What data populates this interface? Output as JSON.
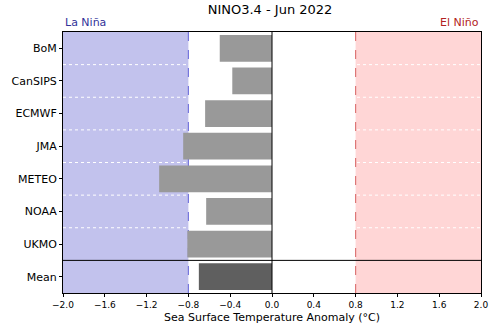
{
  "chart_data": {
    "type": "bar",
    "orientation": "horizontal",
    "title": "NINO3.4 - Jun 2022",
    "x_label": "Sea Surface Temperature Anomaly (°C)",
    "categories": [
      "BoM",
      "CanSIPS",
      "ECMWF",
      "JMA",
      "METEO",
      "NOAA",
      "UKMO",
      "Mean"
    ],
    "values": [
      -0.5,
      -0.38,
      -0.64,
      -0.85,
      -1.08,
      -0.63,
      -0.81,
      -0.7
    ],
    "colors": [
      "#999999",
      "#999999",
      "#999999",
      "#999999",
      "#999999",
      "#999999",
      "#999999",
      "#5f5f5f"
    ],
    "xlim": [
      -2.0,
      2.0
    ],
    "xticks": [
      {
        "value": -2.0,
        "label": "−2.0"
      },
      {
        "value": -1.6,
        "label": "−1.6"
      },
      {
        "value": -1.2,
        "label": "−1.2"
      },
      {
        "value": -0.8,
        "label": "−0.8"
      },
      {
        "value": -0.4,
        "label": "−0.4"
      },
      {
        "value": 0.0,
        "label": "0.0"
      },
      {
        "value": 0.4,
        "label": "0.4"
      },
      {
        "value": 0.8,
        "label": "0.8"
      },
      {
        "value": 1.2,
        "label": "1.2"
      },
      {
        "value": 1.6,
        "label": "1.6"
      },
      {
        "value": 2.0,
        "label": "2.0"
      }
    ],
    "regions": [
      {
        "label": "La Niña",
        "from": -2.0,
        "to": -0.8,
        "color": "#c2c2ed"
      },
      {
        "label": "El Niño",
        "from": 0.8,
        "to": 2.0,
        "color": "#ffd6d6"
      }
    ]
  }
}
